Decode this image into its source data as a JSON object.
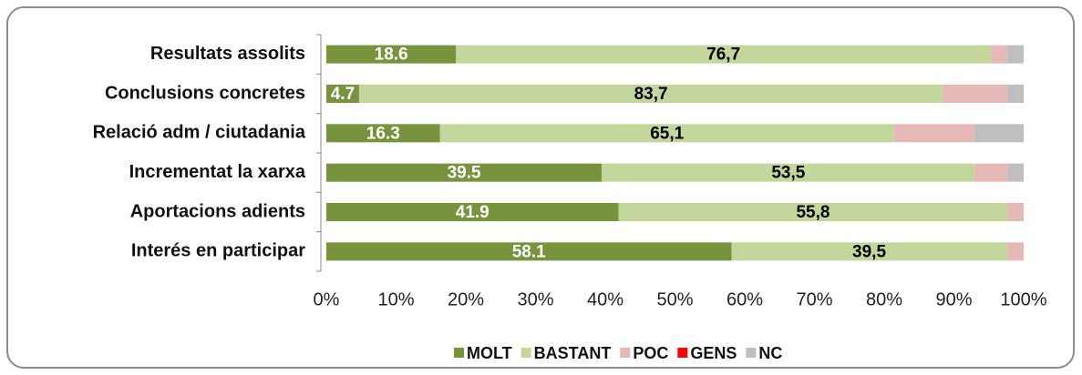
{
  "chart_data": {
    "type": "stacked_bar_horizontal",
    "categories": [
      "Resultats assolits",
      "Conclusions concretes",
      "Relació adm / ciutadania",
      "Incrementat la xarxa",
      "Aportacions adients",
      "Interés en participar"
    ],
    "series": [
      {
        "name": "MOLT",
        "color": "#77933c",
        "values": [
          18.6,
          4.7,
          16.3,
          39.5,
          41.9,
          58.1
        ],
        "value_labels": [
          "18.6",
          "4.7",
          "16.3",
          "39.5",
          "41.9",
          "58.1"
        ],
        "label_color": "#ffffff"
      },
      {
        "name": "BASTANT",
        "color": "#c3d69b",
        "values": [
          76.7,
          83.7,
          65.1,
          53.5,
          55.8,
          39.5
        ],
        "value_labels": [
          "76,7",
          "83,7",
          "65,1",
          "53,5",
          "55,8",
          "39,5"
        ],
        "label_color": "#000000"
      },
      {
        "name": "POC",
        "color": "#e6b9b8",
        "values": [
          2.3,
          9.3,
          11.6,
          4.7,
          2.3,
          2.4
        ]
      },
      {
        "name": "GENS",
        "color": "#ff0000",
        "values": [
          0,
          0,
          0,
          0,
          0,
          0
        ]
      },
      {
        "name": "NC",
        "color": "#bfbfbf",
        "values": [
          2.4,
          2.3,
          7.0,
          2.3,
          0,
          0
        ]
      }
    ],
    "xlim": [
      0,
      100
    ],
    "xticks": [
      {
        "value": 0,
        "label": "0%"
      },
      {
        "value": 10,
        "label": "10%"
      },
      {
        "value": 20,
        "label": "20%"
      },
      {
        "value": 30,
        "label": "30%"
      },
      {
        "value": 40,
        "label": "40%"
      },
      {
        "value": 50,
        "label": "50%"
      },
      {
        "value": 60,
        "label": "60%"
      },
      {
        "value": 70,
        "label": "70%"
      },
      {
        "value": 80,
        "label": "80%"
      },
      {
        "value": 90,
        "label": "90%"
      },
      {
        "value": 100,
        "label": "100%"
      }
    ],
    "legend": "bottom"
  }
}
